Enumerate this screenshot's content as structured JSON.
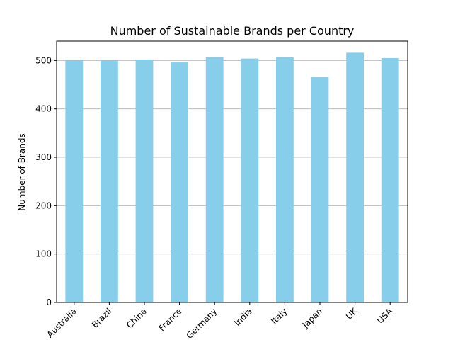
{
  "chart_data": {
    "type": "bar",
    "title": "Number of Sustainable Brands per Country",
    "xlabel": "",
    "ylabel": "Number of Brands",
    "categories": [
      "Australia",
      "Brazil",
      "China",
      "France",
      "Germany",
      "India",
      "Italy",
      "Japan",
      "UK",
      "USA"
    ],
    "values": [
      500,
      500,
      502,
      496,
      507,
      504,
      507,
      466,
      516,
      505
    ],
    "ylim": [
      0,
      540
    ],
    "yticks": [
      0,
      100,
      200,
      300,
      400,
      500
    ],
    "grid": "horizontal",
    "bar_color": "#87ceeb",
    "grid_color": "#b0b0b0"
  }
}
